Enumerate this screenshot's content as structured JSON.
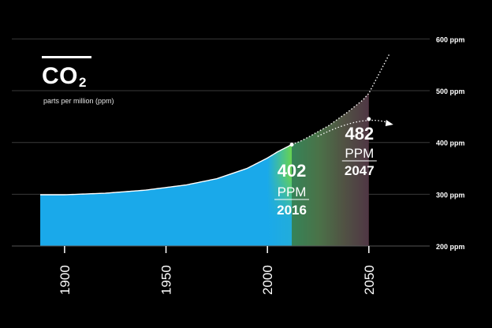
{
  "chart_data": {
    "type": "area",
    "title_main": "CO",
    "title_sub": "2",
    "subtitle": "parts per million (ppm)",
    "x": [
      1888,
      1900,
      1920,
      1940,
      1960,
      1975,
      1990,
      2000,
      2005,
      2012,
      2016,
      2020,
      2030,
      2040,
      2047,
      2050,
      2060
    ],
    "y": [
      299,
      299,
      302,
      308,
      318,
      330,
      350,
      370,
      382,
      396,
      402,
      410,
      432,
      460,
      482,
      495,
      570
    ],
    "measured_until": 2012,
    "fill_until": 2050,
    "xlim": [
      1874,
      2080
    ],
    "ylim": [
      200,
      625
    ],
    "x_ticks": [
      {
        "value": 1900,
        "label": "1900"
      },
      {
        "value": 1950,
        "label": "1950"
      },
      {
        "value": 2000,
        "label": "2000"
      },
      {
        "value": 2050,
        "label": "2050"
      }
    ],
    "y_ticks": [
      {
        "value": 200,
        "label": "200 ppm"
      },
      {
        "value": 300,
        "label": "300 ppm"
      },
      {
        "value": 400,
        "label": "400 ppm"
      },
      {
        "value": 500,
        "label": "500 ppm"
      },
      {
        "value": 600,
        "label": "600 ppm"
      }
    ],
    "grid": true,
    "annotations": [
      {
        "x": 2012,
        "y": 402,
        "value": "402",
        "unit": "PPM",
        "year": "2016"
      },
      {
        "x": 2050,
        "y": 482,
        "value": "482",
        "unit": "PPM",
        "year": "2047"
      }
    ],
    "colors": {
      "historic_fill": "#1aa9ea",
      "projection_overlay": "#0a3f63",
      "gradient_stops": [
        "#1aa9ea",
        "#6cd44a",
        "#9ab12a",
        "#a86a1e",
        "#a52c22"
      ],
      "line": "#ffffff",
      "grid": "#3a3a3a"
    }
  }
}
